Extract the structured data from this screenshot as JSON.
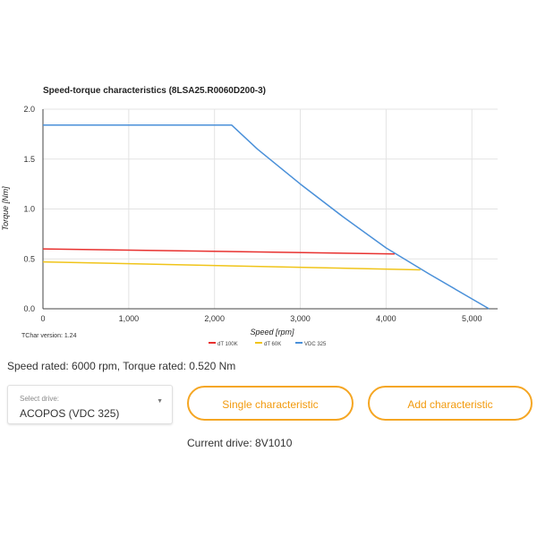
{
  "chart_data": {
    "type": "line",
    "title": "Speed-torque characteristics (8LSA25.R0060D200-3)",
    "xlabel": "Speed [rpm]",
    "ylabel": "Torque [Nm]",
    "xlim": [
      0,
      5300
    ],
    "ylim": [
      0,
      2.0
    ],
    "x_ticks": [
      0,
      1000,
      2000,
      3000,
      4000,
      5000
    ],
    "x_tick_labels": [
      "0",
      "1,000",
      "2,000",
      "3,000",
      "4,000",
      "5,000"
    ],
    "y_ticks": [
      0,
      0.5,
      1.0,
      1.5,
      2.0
    ],
    "y_tick_labels": [
      "0.0",
      "0.5",
      "1.0",
      "1.5",
      "2.0"
    ],
    "grid": true,
    "legend_position": "bottom",
    "series": [
      {
        "name": "dT 100K",
        "color": "#e8312f",
        "x": [
          0,
          4100
        ],
        "y": [
          0.6,
          0.55
        ]
      },
      {
        "name": "dT 60K",
        "color": "#f0c419",
        "x": [
          0,
          4400
        ],
        "y": [
          0.47,
          0.39
        ]
      },
      {
        "name": "VDC 325",
        "color": "#4a90d9",
        "x": [
          0,
          2200,
          2500,
          3000,
          3500,
          4000,
          4500,
          5000,
          5200
        ],
        "y": [
          1.84,
          1.84,
          1.6,
          1.25,
          0.92,
          0.61,
          0.35,
          0.1,
          0.0
        ]
      }
    ],
    "version_note": "TChar version: 1.24"
  },
  "info": {
    "speed_torque_rated": "Speed rated: 6000 rpm, Torque rated: 0.520 Nm"
  },
  "drive_select": {
    "label": "Select drive:",
    "value": "ACOPOS (VDC 325)"
  },
  "buttons": {
    "single": "Single characteristic",
    "add": "Add characteristic"
  },
  "current_drive": "Current drive: 8V1010"
}
